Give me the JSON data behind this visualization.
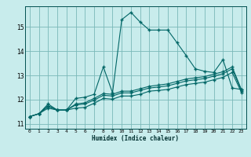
{
  "xlabel": "Humidex (Indice chaleur)",
  "background_color": "#c8ecec",
  "grid_color": "#7ab8b8",
  "line_color": "#006666",
  "xlim": [
    -0.5,
    23.5
  ],
  "ylim": [
    10.8,
    15.85
  ],
  "yticks": [
    11,
    12,
    13,
    14,
    15
  ],
  "xticks": [
    0,
    1,
    2,
    3,
    4,
    5,
    6,
    7,
    8,
    9,
    10,
    11,
    12,
    13,
    14,
    15,
    16,
    17,
    18,
    19,
    20,
    21,
    22,
    23
  ],
  "series1_x": [
    0,
    1,
    2,
    3,
    4,
    5,
    6,
    7,
    8,
    9,
    10,
    11,
    12,
    13,
    14,
    15,
    16,
    17,
    18,
    19,
    20,
    21,
    22,
    23
  ],
  "series1_y": [
    11.3,
    11.42,
    11.82,
    11.57,
    11.57,
    12.05,
    12.1,
    12.22,
    13.35,
    12.28,
    15.3,
    15.6,
    15.2,
    14.87,
    14.87,
    14.87,
    14.35,
    13.82,
    13.27,
    13.17,
    13.12,
    13.65,
    12.48,
    12.42
  ],
  "series2_x": [
    0,
    1,
    2,
    3,
    4,
    5,
    6,
    7,
    8,
    9,
    10,
    11,
    12,
    13,
    14,
    15,
    16,
    17,
    18,
    19,
    20,
    21,
    22,
    23
  ],
  "series2_y": [
    11.3,
    11.42,
    11.75,
    11.57,
    11.57,
    11.82,
    11.87,
    12.05,
    12.25,
    12.22,
    12.35,
    12.35,
    12.45,
    12.55,
    12.6,
    12.65,
    12.75,
    12.85,
    12.9,
    12.95,
    13.05,
    13.15,
    13.35,
    12.42
  ],
  "series3_x": [
    0,
    1,
    2,
    3,
    4,
    5,
    6,
    7,
    8,
    9,
    10,
    11,
    12,
    13,
    14,
    15,
    16,
    17,
    18,
    19,
    20,
    21,
    22,
    23
  ],
  "series3_y": [
    11.3,
    11.42,
    11.72,
    11.57,
    11.57,
    11.78,
    11.82,
    11.98,
    12.18,
    12.15,
    12.28,
    12.28,
    12.38,
    12.48,
    12.52,
    12.57,
    12.67,
    12.77,
    12.82,
    12.87,
    12.97,
    13.07,
    13.27,
    12.37
  ],
  "series4_x": [
    0,
    1,
    2,
    3,
    4,
    5,
    6,
    7,
    8,
    9,
    10,
    11,
    12,
    13,
    14,
    15,
    16,
    17,
    18,
    19,
    20,
    21,
    22,
    23
  ],
  "series4_y": [
    11.3,
    11.42,
    11.65,
    11.57,
    11.57,
    11.65,
    11.68,
    11.85,
    12.05,
    12.02,
    12.15,
    12.15,
    12.22,
    12.35,
    12.38,
    12.42,
    12.52,
    12.62,
    12.67,
    12.72,
    12.82,
    12.92,
    13.12,
    12.3
  ]
}
